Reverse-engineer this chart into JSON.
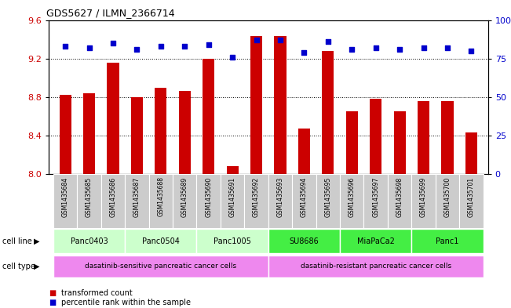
{
  "title": "GDS5627 / ILMN_2366714",
  "samples": [
    "GSM1435684",
    "GSM1435685",
    "GSM1435686",
    "GSM1435687",
    "GSM1435688",
    "GSM1435689",
    "GSM1435690",
    "GSM1435691",
    "GSM1435692",
    "GSM1435693",
    "GSM1435694",
    "GSM1435695",
    "GSM1435696",
    "GSM1435697",
    "GSM1435698",
    "GSM1435699",
    "GSM1435700",
    "GSM1435701"
  ],
  "bar_values": [
    8.82,
    8.84,
    9.16,
    8.8,
    8.9,
    8.86,
    9.2,
    8.08,
    9.43,
    9.43,
    8.47,
    9.28,
    8.65,
    8.78,
    8.65,
    8.76,
    8.76,
    8.43
  ],
  "percentile_values": [
    83,
    82,
    85,
    81,
    83,
    83,
    84,
    76,
    87,
    87,
    79,
    86,
    81,
    82,
    81,
    82,
    82,
    80
  ],
  "ylim_left": [
    8.0,
    9.6
  ],
  "ylim_right": [
    0,
    100
  ],
  "yticks_left": [
    8.0,
    8.4,
    8.8,
    9.2,
    9.6
  ],
  "yticks_right": [
    0,
    25,
    50,
    75,
    100
  ],
  "bar_color": "#cc0000",
  "dot_color": "#0000cc",
  "cell_lines": [
    {
      "name": "Panc0403",
      "start": 0,
      "end": 3,
      "color": "#ccffcc"
    },
    {
      "name": "Panc0504",
      "start": 3,
      "end": 6,
      "color": "#ccffcc"
    },
    {
      "name": "Panc1005",
      "start": 6,
      "end": 9,
      "color": "#ccffcc"
    },
    {
      "name": "SU8686",
      "start": 9,
      "end": 12,
      "color": "#44ee44"
    },
    {
      "name": "MiaPaCa2",
      "start": 12,
      "end": 15,
      "color": "#44ee44"
    },
    {
      "name": "Panc1",
      "start": 15,
      "end": 18,
      "color": "#44ee44"
    }
  ],
  "cell_types": [
    {
      "name": "dasatinib-sensitive pancreatic cancer cells",
      "start": 0,
      "end": 9,
      "color": "#ee88ee"
    },
    {
      "name": "dasatinib-resistant pancreatic cancer cells",
      "start": 9,
      "end": 18,
      "color": "#ee88ee"
    }
  ],
  "sample_box_color": "#cccccc",
  "grid_color": "#000000",
  "tick_label_color_left": "#cc0000",
  "tick_label_color_right": "#0000cc",
  "background_color": "#ffffff",
  "chart_bg": "#ffffff"
}
